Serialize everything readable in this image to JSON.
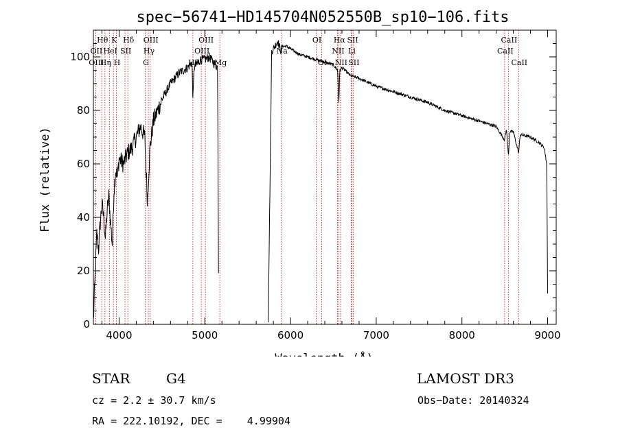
{
  "chart_data": {
    "type": "line",
    "title": "spec−56741−HD145704N052550B_sp10−106.fits",
    "xlabel": "Wavelength (Å)",
    "ylabel": "Flux (relative)",
    "xlim": [
      3700,
      9100
    ],
    "ylim": [
      0,
      110
    ],
    "xticks": [
      4000,
      5000,
      6000,
      7000,
      8000,
      9000
    ],
    "yticks": [
      0,
      20,
      40,
      60,
      80,
      100
    ],
    "line_color": "#000000",
    "marker_color": "#cc2222",
    "gaps": [
      [
        5160,
        5740
      ]
    ],
    "anchors": [
      [
        3700,
        1
      ],
      [
        3720,
        18
      ],
      [
        3740,
        34
      ],
      [
        3760,
        28
      ],
      [
        3780,
        38
      ],
      [
        3800,
        45
      ],
      [
        3820,
        40
      ],
      [
        3840,
        32
      ],
      [
        3860,
        42
      ],
      [
        3880,
        48
      ],
      [
        3900,
        38
      ],
      [
        3920,
        30
      ],
      [
        3940,
        50
      ],
      [
        3960,
        58
      ],
      [
        3980,
        55
      ],
      [
        4000,
        62
      ],
      [
        4050,
        60
      ],
      [
        4100,
        64
      ],
      [
        4150,
        66
      ],
      [
        4200,
        70
      ],
      [
        4250,
        74
      ],
      [
        4300,
        70
      ],
      [
        4330,
        46
      ],
      [
        4360,
        66
      ],
      [
        4400,
        76
      ],
      [
        4500,
        84
      ],
      [
        4600,
        90
      ],
      [
        4700,
        94
      ],
      [
        4800,
        96
      ],
      [
        4850,
        98
      ],
      [
        4862,
        84
      ],
      [
        4875,
        96
      ],
      [
        4950,
        99
      ],
      [
        5000,
        99
      ],
      [
        5050,
        100
      ],
      [
        5100,
        98
      ],
      [
        5150,
        96
      ],
      [
        5160,
        20
      ],
      [
        5740,
        2
      ],
      [
        5760,
        50
      ],
      [
        5780,
        102
      ],
      [
        5800,
        103
      ],
      [
        5850,
        106
      ],
      [
        5890,
        102
      ],
      [
        5900,
        104
      ],
      [
        5950,
        104
      ],
      [
        6000,
        103
      ],
      [
        6100,
        101
      ],
      [
        6200,
        100
      ],
      [
        6300,
        99
      ],
      [
        6400,
        98
      ],
      [
        6500,
        97
      ],
      [
        6550,
        95
      ],
      [
        6563,
        82
      ],
      [
        6575,
        95
      ],
      [
        6600,
        96
      ],
      [
        6700,
        93
      ],
      [
        6800,
        92
      ],
      [
        7000,
        89
      ],
      [
        7200,
        87
      ],
      [
        7400,
        85
      ],
      [
        7600,
        83
      ],
      [
        7800,
        80
      ],
      [
        8000,
        78
      ],
      [
        8200,
        76
      ],
      [
        8400,
        74
      ],
      [
        8498,
        69
      ],
      [
        8520,
        73
      ],
      [
        8542,
        63
      ],
      [
        8560,
        72
      ],
      [
        8600,
        72
      ],
      [
        8662,
        64
      ],
      [
        8680,
        71
      ],
      [
        8800,
        70
      ],
      [
        8900,
        68
      ],
      [
        8960,
        66
      ],
      [
        8990,
        60
      ],
      [
        9000,
        12
      ]
    ],
    "spectral_lines": [
      {
        "label": "Hθ",
        "x": 3798,
        "row": 0
      },
      {
        "label": "OII",
        "x": 3727,
        "row": 1
      },
      {
        "label": "OIII",
        "x": 3727,
        "row": 2
      },
      {
        "label": "Hη",
        "x": 3835,
        "row": 2
      },
      {
        "label": "HeI",
        "x": 3889,
        "row": 1
      },
      {
        "label": "K",
        "x": 3934,
        "row": 0
      },
      {
        "label": "H",
        "x": 3968,
        "row": 2
      },
      {
        "label": "SII",
        "x": 4069,
        "row": 1
      },
      {
        "label": "Hδ",
        "x": 4102,
        "row": 0
      },
      {
        "label": "OIII",
        "x": 4363,
        "row": 0
      },
      {
        "label": "Hγ",
        "x": 4341,
        "row": 1
      },
      {
        "label": "G",
        "x": 4305,
        "row": 2
      },
      {
        "label": "OIII",
        "x": 5007,
        "row": 0
      },
      {
        "label": "OIII",
        "x": 4959,
        "row": 1
      },
      {
        "label": "Hβ",
        "x": 4861,
        "row": 2
      },
      {
        "label": "Mg",
        "x": 5175,
        "row": 2
      },
      {
        "label": "Na",
        "x": 5893,
        "row": 1
      },
      {
        "label": "OI",
        "x": 6300,
        "row": 0
      },
      {
        "label": "OI",
        "x": 6364,
        "row": 2
      },
      {
        "label": "Hα",
        "x": 6563,
        "row": 0
      },
      {
        "label": "NII",
        "x": 6548,
        "row": 1
      },
      {
        "label": "NII",
        "x": 6583,
        "row": 2
      },
      {
        "label": "SII",
        "x": 6717,
        "row": 0
      },
      {
        "label": "Li",
        "x": 6708,
        "row": 1
      },
      {
        "label": "SII",
        "x": 6731,
        "row": 2
      },
      {
        "label": "CaII",
        "x": 8542,
        "row": 0
      },
      {
        "label": "CaII",
        "x": 8498,
        "row": 1
      },
      {
        "label": "CaII",
        "x": 8662,
        "row": 2
      }
    ]
  },
  "info": {
    "object_class": "STAR",
    "subclass": "G4",
    "survey": "LAMOST DR3",
    "redshift": "cz = 2.2 ± 30.7 km/s",
    "obs_date": "Obs−Date: 20140324",
    "coords": "RA = 222.10192, DEC =    4.99904"
  }
}
